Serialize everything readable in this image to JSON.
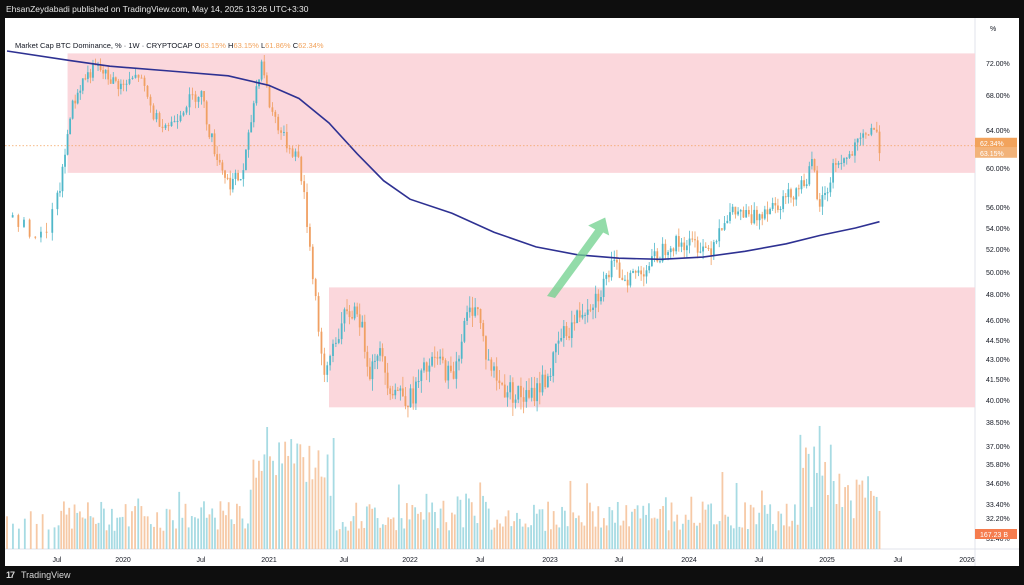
{
  "header": {
    "publish_line": "EhsanZeydabadi published on TradingView.com, May 14, 2025 13:26 UTC+3:30"
  },
  "footer": {
    "brand": "TradingView",
    "logo_glyph": "17"
  },
  "legend": {
    "symbol": "Market Cap BTC Dominance, % · 1W · CRYPTOCAP",
    "o_label": "O",
    "o": "63.15%",
    "h_label": "H",
    "h": "63.15%",
    "l_label": "L",
    "l": "61.86%",
    "c_label": "C",
    "c": "62.34%"
  },
  "scale_unit": "%",
  "price_labels": {
    "close": "62.34%",
    "open": "63.15%",
    "volume": "167.23 B"
  },
  "colors": {
    "up": "#4fb7c9",
    "down": "#f0a063",
    "zone": "#fbd7dc",
    "ma": "#2e3192",
    "arrow": "#6fd08c",
    "close_line": "#f3a25e",
    "volume_label_bg": "#f57c4e"
  },
  "chart_data": {
    "type": "candlestick",
    "x_axis_labels": [
      "Jul",
      "2020",
      "Jul",
      "2021",
      "Jul",
      "2022",
      "Jul",
      "2023",
      "Jul",
      "2024",
      "Jul",
      "2025",
      "Jul",
      "2026"
    ],
    "y_axis_labels": [
      "72.00%",
      "68.00%",
      "64.00%",
      "60.00%",
      "56.00%",
      "54.00%",
      "52.00%",
      "50.00%",
      "48.00%",
      "46.00%",
      "44.50%",
      "43.00%",
      "41.50%",
      "40.00%",
      "38.50%",
      "37.00%",
      "35.80%",
      "34.60%",
      "33.40%",
      "32.20%",
      "31.40%"
    ],
    "series": [
      {
        "name": "BTC Dominance (weekly)",
        "path": [
          [
            2019.33,
            55.0
          ],
          [
            2019.45,
            53.0
          ],
          [
            2019.55,
            60.0
          ],
          [
            2019.6,
            66.0
          ],
          [
            2019.7,
            70.0
          ],
          [
            2019.8,
            71.5
          ],
          [
            2019.9,
            70.0
          ],
          [
            2020.0,
            69.0
          ],
          [
            2020.1,
            70.5
          ],
          [
            2020.2,
            65.5
          ],
          [
            2020.3,
            64.5
          ],
          [
            2020.4,
            67.0
          ],
          [
            2020.5,
            68.5
          ],
          [
            2020.55,
            64.5
          ],
          [
            2020.6,
            62.0
          ],
          [
            2020.7,
            58.5
          ],
          [
            2020.8,
            59.0
          ],
          [
            2020.85,
            63.0
          ],
          [
            2020.9,
            68.5
          ],
          [
            2020.95,
            72.5
          ],
          [
            2021.0,
            67.0
          ],
          [
            2021.1,
            63.0
          ],
          [
            2021.2,
            61.0
          ],
          [
            2021.25,
            55.0
          ],
          [
            2021.3,
            49.0
          ],
          [
            2021.37,
            41.0
          ],
          [
            2021.42,
            44.0
          ],
          [
            2021.5,
            46.0
          ],
          [
            2021.6,
            47.0
          ],
          [
            2021.7,
            42.0
          ],
          [
            2021.75,
            44.0
          ],
          [
            2021.85,
            41.0
          ],
          [
            2021.95,
            40.5
          ],
          [
            2022.0,
            40.0
          ],
          [
            2022.1,
            42.0
          ],
          [
            2022.2,
            43.0
          ],
          [
            2022.3,
            41.5
          ],
          [
            2022.4,
            46.0
          ],
          [
            2022.47,
            47.5
          ],
          [
            2022.55,
            43.0
          ],
          [
            2022.65,
            41.0
          ],
          [
            2022.75,
            40.5
          ],
          [
            2022.85,
            40.0
          ],
          [
            2022.92,
            41.0
          ],
          [
            2023.0,
            42.0
          ],
          [
            2023.07,
            44.5
          ],
          [
            2023.15,
            45.5
          ],
          [
            2023.25,
            47.0
          ],
          [
            2023.35,
            48.0
          ],
          [
            2023.45,
            50.5
          ],
          [
            2023.55,
            49.5
          ],
          [
            2023.65,
            50.0
          ],
          [
            2023.75,
            51.0
          ],
          [
            2023.85,
            52.5
          ],
          [
            2023.95,
            52.5
          ],
          [
            2024.05,
            52.5
          ],
          [
            2024.15,
            52.0
          ],
          [
            2024.25,
            55.0
          ],
          [
            2024.35,
            55.5
          ],
          [
            2024.45,
            54.8
          ],
          [
            2024.55,
            56.0
          ],
          [
            2024.65,
            56.5
          ],
          [
            2024.75,
            57.5
          ],
          [
            2024.85,
            59.0
          ],
          [
            2024.9,
            60.5
          ],
          [
            2024.93,
            56.0
          ],
          [
            2025.0,
            57.5
          ],
          [
            2025.05,
            60.5
          ],
          [
            2025.15,
            61.0
          ],
          [
            2025.25,
            63.0
          ],
          [
            2025.32,
            64.5
          ],
          [
            2025.37,
            62.34
          ]
        ]
      },
      {
        "name": "Moving average",
        "path": [
          [
            2019.33,
            73.5
          ],
          [
            2019.6,
            72.3
          ],
          [
            2019.9,
            71.6
          ],
          [
            2020.3,
            71.0
          ],
          [
            2020.7,
            70.4
          ],
          [
            2021.0,
            69.2
          ],
          [
            2021.2,
            67.6
          ],
          [
            2021.4,
            64.8
          ],
          [
            2021.6,
            61.5
          ],
          [
            2021.8,
            58.7
          ],
          [
            2022.0,
            56.8
          ],
          [
            2022.3,
            55.4
          ],
          [
            2022.6,
            53.6
          ],
          [
            2022.9,
            52.2
          ],
          [
            2023.2,
            51.5
          ],
          [
            2023.5,
            51.2
          ],
          [
            2023.8,
            51.1
          ],
          [
            2024.1,
            51.3
          ],
          [
            2024.4,
            51.8
          ],
          [
            2024.7,
            52.5
          ],
          [
            2024.95,
            53.3
          ],
          [
            2025.2,
            54.0
          ],
          [
            2025.37,
            54.6
          ]
        ]
      }
    ],
    "zones": [
      {
        "label": "upper zone",
        "y_range": [
          59.5,
          73.2
        ],
        "x_range": [
          2019.58,
          2026.0
        ]
      },
      {
        "label": "lower zone",
        "y_range": [
          39.5,
          48.6
        ],
        "x_range": [
          2021.4,
          2026.0
        ]
      }
    ],
    "volume": {
      "unit": "B",
      "last": 167.23,
      "relative_max": 1.0
    },
    "current_value": 62.34,
    "y_scale": "nonlinear",
    "grid": false
  }
}
